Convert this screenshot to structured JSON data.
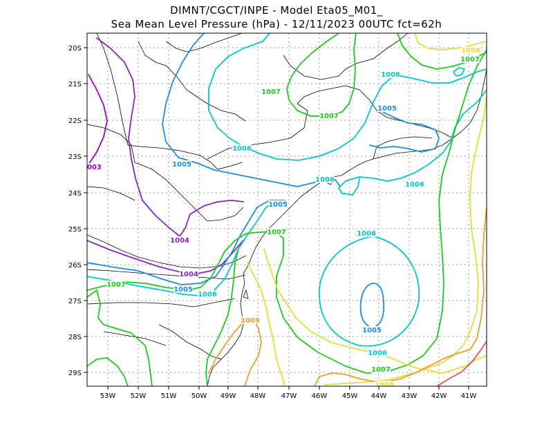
{
  "header": {
    "line1": "DIMNT/CGCT/INPE -  Model Eta05_M01_",
    "line2": "Sea Mean Level Pressure (hPa) - 12/11/2023 00UTC fct=62h"
  },
  "lat_ticks": [
    "20S",
    "21S",
    "22S",
    "23S",
    "24S",
    "25S",
    "26S",
    "27S",
    "28S",
    "29S"
  ],
  "lon_ticks": [
    "53W",
    "52W",
    "51W",
    "50W",
    "49W",
    "48W",
    "47W",
    "46W",
    "45W",
    "44W",
    "43W",
    "42W",
    "41W"
  ],
  "contour_labels": {
    "c1003": "003",
    "c1004": "1004",
    "c1005": "1005",
    "c1006": "1006",
    "c1007": "1007",
    "c1008": "1008",
    "c1009": "1009"
  },
  "colors": {
    "c1003": "#a000c8",
    "c1004": "#8b20c8",
    "c1005": "#1e8ce6",
    "c1006": "#00c8c8",
    "c1007": "#1ec81e",
    "c1008": "#e6dc32",
    "c1009": "#e6a028",
    "c1010": "#f0503c",
    "coast": "#000000"
  }
}
